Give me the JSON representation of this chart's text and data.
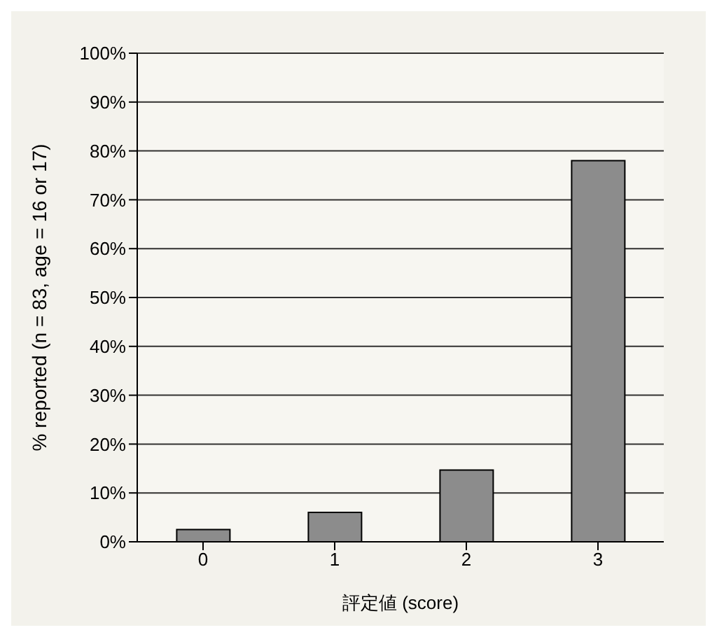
{
  "chart_data": {
    "type": "bar",
    "xlabel": "評定値 (score)",
    "ylabel": "% reported (n = 83, age = 16 or 17)",
    "categories": [
      "0",
      "1",
      "2",
      "3"
    ],
    "values": [
      2.5,
      6,
      14.7,
      78
    ],
    "color": "#8c8c8c",
    "ylim": [
      0,
      100
    ],
    "yticks": [
      {
        "value": 0,
        "label": "0%"
      },
      {
        "value": 10,
        "label": "10%"
      },
      {
        "value": 20,
        "label": "20%"
      },
      {
        "value": 30,
        "label": "30%"
      },
      {
        "value": 40,
        "label": "40%"
      },
      {
        "value": 50,
        "label": "50%"
      },
      {
        "value": 60,
        "label": "60%"
      },
      {
        "value": 70,
        "label": "70%"
      },
      {
        "value": 80,
        "label": "80%"
      },
      {
        "value": 90,
        "label": "90%"
      },
      {
        "value": 100,
        "label": "100%"
      }
    ],
    "grid": "y"
  }
}
